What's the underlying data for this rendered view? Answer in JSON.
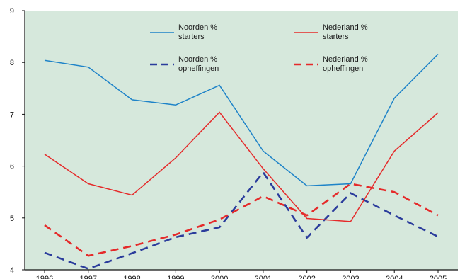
{
  "chart_data": {
    "type": "line",
    "title": "",
    "xlabel": "",
    "ylabel": "",
    "x": [
      "1996",
      "1997",
      "1998",
      "1999",
      "2000",
      "2001",
      "2002",
      "2003",
      "2004",
      "2005"
    ],
    "ylim": [
      4,
      9
    ],
    "yticks": [
      "4",
      "5",
      "6",
      "7",
      "8",
      "9"
    ],
    "grid": false,
    "legend_position": "top",
    "background_color": "#d6e8dc",
    "series": [
      {
        "name": "Noorden % starters",
        "legend_lines": [
          "Noorden %",
          "starters"
        ],
        "color": "#1e83c8",
        "style": "solid",
        "values": [
          8.04,
          7.91,
          7.28,
          7.18,
          7.56,
          6.29,
          5.62,
          5.66,
          7.31,
          8.16
        ]
      },
      {
        "name": "Nederland % starters",
        "legend_lines": [
          "Nederland %",
          "starters"
        ],
        "color": "#e52a2a",
        "style": "solid",
        "values": [
          6.23,
          5.66,
          5.44,
          6.16,
          7.04,
          5.95,
          4.99,
          4.93,
          6.29,
          7.03
        ]
      },
      {
        "name": "Noorden % opheffingen",
        "legend_lines": [
          "Noorden %",
          "opheffingen"
        ],
        "color": "#2b3c9c",
        "style": "dashed",
        "values": [
          4.33,
          4.02,
          4.32,
          4.63,
          4.82,
          5.88,
          4.62,
          5.48,
          5.05,
          4.64
        ]
      },
      {
        "name": "Nederland % opheffingen",
        "legend_lines": [
          "Nederland %",
          "opheffingen"
        ],
        "color": "#e52a2a",
        "style": "dashed",
        "values": [
          4.86,
          4.27,
          4.46,
          4.68,
          4.97,
          5.42,
          5.05,
          5.66,
          5.5,
          5.05
        ]
      }
    ]
  }
}
